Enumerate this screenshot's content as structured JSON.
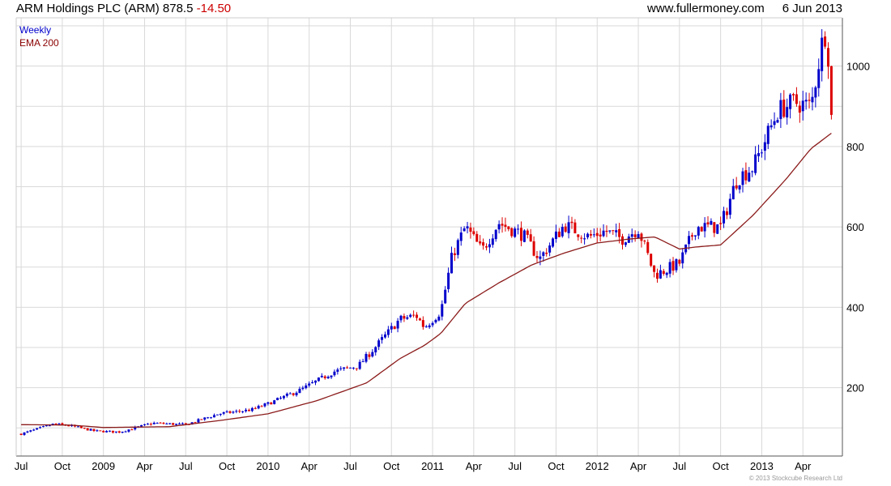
{
  "header": {
    "title": "ARM Holdings PLC (ARM)",
    "last_price": "878.5",
    "change": "-14.50",
    "site": "www.fullermoney.com",
    "date": "6 Jun 2013"
  },
  "legend": {
    "weekly": "Weekly",
    "ema": "EMA 200"
  },
  "copyright": "© 2013 Stockcube Research Ltd",
  "colors": {
    "up": "#0000cc",
    "down": "#dd0000",
    "ema": "#8b1a1a",
    "grid": "#d9d9d9"
  },
  "chart_data": {
    "type": "candlestick",
    "interval": "weekly",
    "y_axis_position": "right",
    "ylim": [
      30,
      1120
    ],
    "yticks": [
      200,
      400,
      600,
      800,
      1000
    ],
    "x_tick_labels": [
      "Jul",
      "Oct",
      "2009",
      "Apr",
      "Jul",
      "Oct",
      "2010",
      "Apr",
      "Jul",
      "Oct",
      "2011",
      "Apr",
      "Jul",
      "Oct",
      "2012",
      "Apr",
      "Jul",
      "Oct",
      "2013",
      "Apr"
    ],
    "grid": true,
    "anchors": [
      [
        2008.5,
        85
      ],
      [
        2008.7,
        110
      ],
      [
        2008.8,
        105
      ],
      [
        2008.95,
        92
      ],
      [
        2009.1,
        90
      ],
      [
        2009.3,
        112
      ],
      [
        2009.5,
        108
      ],
      [
        2009.7,
        135
      ],
      [
        2009.9,
        145
      ],
      [
        2010.0,
        160
      ],
      [
        2010.2,
        195
      ],
      [
        2010.4,
        240
      ],
      [
        2010.55,
        255
      ],
      [
        2010.65,
        300
      ],
      [
        2010.8,
        370
      ],
      [
        2010.9,
        380
      ],
      [
        2010.95,
        350
      ],
      [
        2011.05,
        390
      ],
      [
        2011.12,
        530
      ],
      [
        2011.2,
        600
      ],
      [
        2011.3,
        540
      ],
      [
        2011.4,
        610
      ],
      [
        2011.55,
        580
      ],
      [
        2011.65,
        520
      ],
      [
        2011.8,
        605
      ],
      [
        2011.95,
        575
      ],
      [
        2012.05,
        590
      ],
      [
        2012.15,
        570
      ],
      [
        2012.25,
        595
      ],
      [
        2012.35,
        480
      ],
      [
        2012.5,
        510
      ],
      [
        2012.6,
        600
      ],
      [
        2012.75,
        600
      ],
      [
        2012.85,
        720
      ],
      [
        2012.95,
        750
      ],
      [
        2013.1,
        890
      ],
      [
        2013.2,
        910
      ],
      [
        2013.3,
        900
      ],
      [
        2013.38,
        1090
      ],
      [
        2013.4,
        1050
      ],
      [
        2013.43,
        878.5
      ]
    ],
    "ema_anchors": [
      [
        2008.5,
        108
      ],
      [
        2008.8,
        107
      ],
      [
        2009.0,
        101
      ],
      [
        2009.4,
        103
      ],
      [
        2009.7,
        118
      ],
      [
        2010.0,
        135
      ],
      [
        2010.3,
        168
      ],
      [
        2010.6,
        212
      ],
      [
        2010.8,
        272
      ],
      [
        2010.95,
        305
      ],
      [
        2011.05,
        335
      ],
      [
        2011.2,
        410
      ],
      [
        2011.4,
        460
      ],
      [
        2011.6,
        505
      ],
      [
        2011.8,
        535
      ],
      [
        2012.0,
        560
      ],
      [
        2012.2,
        570
      ],
      [
        2012.35,
        575
      ],
      [
        2012.5,
        545
      ],
      [
        2012.6,
        550
      ],
      [
        2012.75,
        555
      ],
      [
        2012.95,
        630
      ],
      [
        2013.15,
        720
      ],
      [
        2013.3,
        795
      ],
      [
        2013.43,
        835
      ]
    ]
  }
}
